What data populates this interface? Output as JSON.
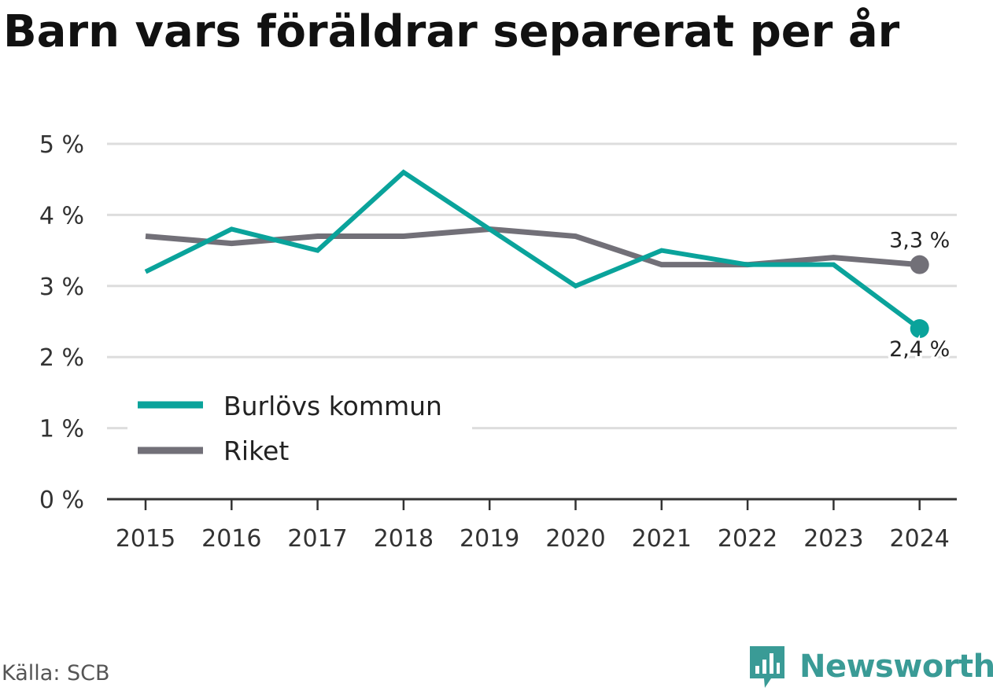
{
  "title": "Barn vars föräldrar separerat per år",
  "source": "Källa: SCB",
  "brand": "Newsworthy",
  "colors": {
    "kommun": "#0aa39b",
    "riket": "#727078",
    "grid": "#dddddd",
    "axis": "#333333",
    "brand": "#3a9b96"
  },
  "chart_data": {
    "type": "line",
    "x": [
      "2015",
      "2016",
      "2017",
      "2018",
      "2019",
      "2020",
      "2021",
      "2022",
      "2023",
      "2024"
    ],
    "series": [
      {
        "name": "Burlövs kommun",
        "values": [
          3.2,
          3.8,
          3.5,
          4.6,
          3.8,
          3.0,
          3.5,
          3.3,
          3.3,
          2.4
        ]
      },
      {
        "name": "Riket",
        "values": [
          3.7,
          3.6,
          3.7,
          3.7,
          3.8,
          3.7,
          3.3,
          3.3,
          3.4,
          3.3
        ]
      }
    ],
    "ylim": [
      0,
      5
    ],
    "yticks": [
      "0 %",
      "1 %",
      "2 %",
      "3 %",
      "4 %",
      "5 %"
    ],
    "end_labels": {
      "kommun": "2,4 %",
      "riket": "3,3 %"
    },
    "legend_position": "bottom-left",
    "grid": true
  }
}
